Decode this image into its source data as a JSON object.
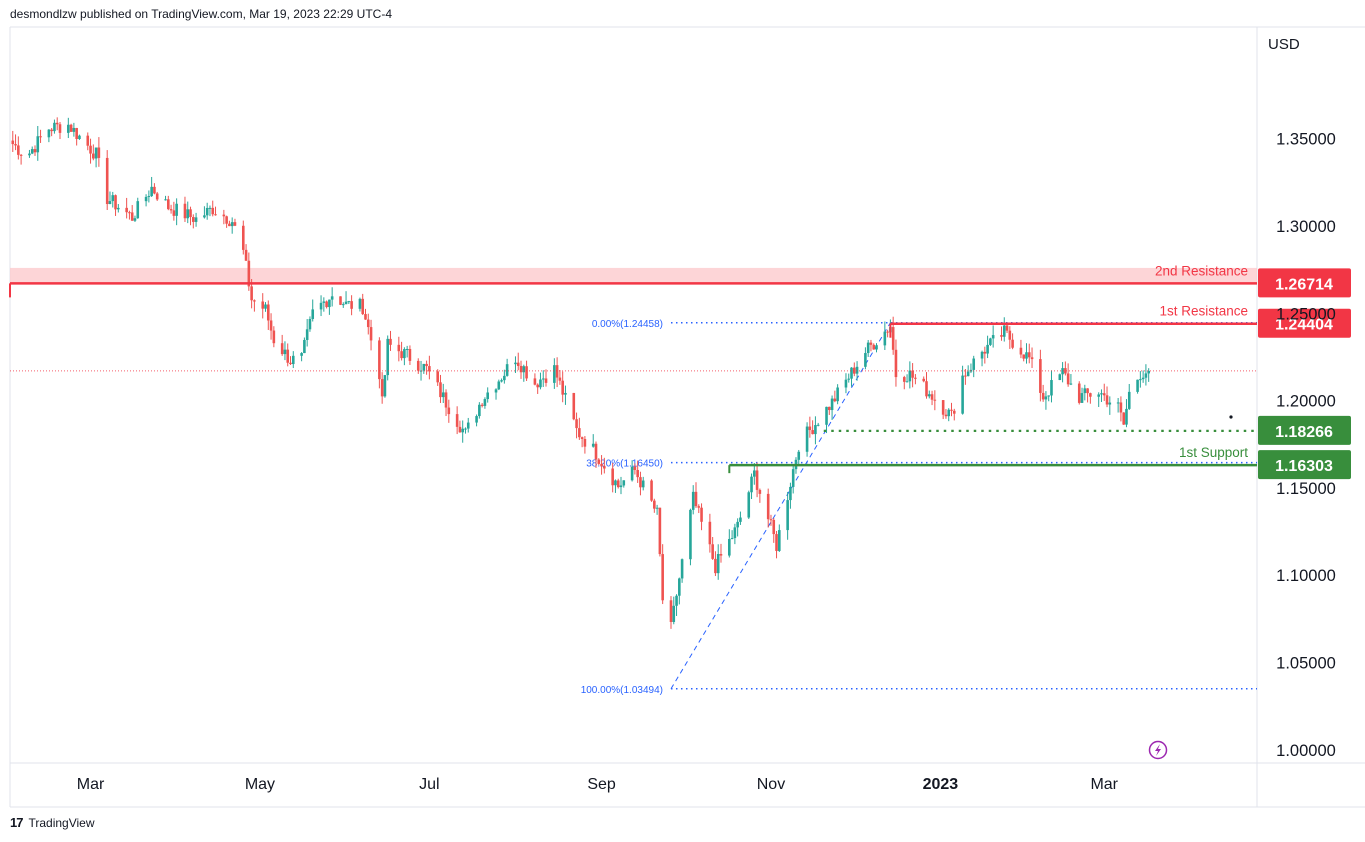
{
  "header": {
    "published": "desmondlzw published on TradingView.com, Mar 19, 2023 22:29 UTC-4"
  },
  "footer": {
    "brand": "TradingView",
    "logo_glyph": "17"
  },
  "currency": "USD",
  "colors": {
    "up": "#26a69a",
    "down": "#ef5350",
    "resistance": "#f23645",
    "support": "#388e3c",
    "fib": "#2962ff",
    "zone": "#fccbcd",
    "grid": "#e0e3eb"
  },
  "chart_data": {
    "type": "candlestick",
    "title": "",
    "xlabel": "",
    "ylabel": "",
    "ylim": [
      0.98,
      1.4
    ],
    "y_ticks": [
      "1.35000",
      "1.30000",
      "1.25000",
      "1.20000",
      "1.15000",
      "1.10000",
      "1.05000",
      "1.00000"
    ],
    "y_tick_values": [
      1.35,
      1.3,
      1.25,
      1.2,
      1.15,
      1.1,
      1.05,
      1.0
    ],
    "x_ticks": [
      {
        "label": "Mar",
        "date": "2022-03-01",
        "bold": false
      },
      {
        "label": "May",
        "date": "2022-05-01",
        "bold": false
      },
      {
        "label": "Jul",
        "date": "2022-07-01",
        "bold": false
      },
      {
        "label": "Sep",
        "date": "2022-09-01",
        "bold": false
      },
      {
        "label": "Nov",
        "date": "2022-11-01",
        "bold": false
      },
      {
        "label": "2023",
        "date": "2023-01-01",
        "bold": true
      },
      {
        "label": "Mar",
        "date": "2023-03-01",
        "bold": false
      }
    ],
    "price_waypoints": [
      [
        "2022-02-01",
        1.347
      ],
      [
        "2022-02-06",
        1.34
      ],
      [
        "2022-02-14",
        1.356
      ],
      [
        "2022-02-21",
        1.358
      ],
      [
        "2022-03-03",
        1.341
      ],
      [
        "2022-03-07",
        1.316
      ],
      [
        "2022-03-16",
        1.305
      ],
      [
        "2022-03-23",
        1.322
      ],
      [
        "2022-03-29",
        1.311
      ],
      [
        "2022-04-08",
        1.304
      ],
      [
        "2022-04-14",
        1.31
      ],
      [
        "2022-04-21",
        1.303
      ],
      [
        "2022-04-25",
        1.285
      ],
      [
        "2022-04-28",
        1.258
      ],
      [
        "2022-05-03",
        1.252
      ],
      [
        "2022-05-06",
        1.235
      ],
      [
        "2022-05-12",
        1.223
      ],
      [
        "2022-05-16",
        1.224
      ],
      [
        "2022-05-20",
        1.25
      ],
      [
        "2022-05-27",
        1.261
      ],
      [
        "2022-06-01",
        1.255
      ],
      [
        "2022-06-07",
        1.254
      ],
      [
        "2022-06-13",
        1.216
      ],
      [
        "2022-06-14",
        1.198
      ],
      [
        "2022-06-16",
        1.232
      ],
      [
        "2022-06-23",
        1.226
      ],
      [
        "2022-06-30",
        1.218
      ],
      [
        "2022-07-07",
        1.199
      ],
      [
        "2022-07-14",
        1.181
      ],
      [
        "2022-07-20",
        1.201
      ],
      [
        "2022-07-28",
        1.216
      ],
      [
        "2022-08-01",
        1.225
      ],
      [
        "2022-08-08",
        1.21
      ],
      [
        "2022-08-15",
        1.218
      ],
      [
        "2022-08-23",
        1.183
      ],
      [
        "2022-08-30",
        1.17
      ],
      [
        "2022-09-07",
        1.151
      ],
      [
        "2022-09-13",
        1.16
      ],
      [
        "2022-09-21",
        1.135
      ],
      [
        "2022-09-23",
        1.086
      ],
      [
        "2022-09-26",
        1.069
      ],
      [
        "2022-09-28",
        1.089
      ],
      [
        "2022-10-04",
        1.144
      ],
      [
        "2022-10-12",
        1.105
      ],
      [
        "2022-10-20",
        1.128
      ],
      [
        "2022-10-26",
        1.158
      ],
      [
        "2022-11-03",
        1.117
      ],
      [
        "2022-11-11",
        1.175
      ],
      [
        "2022-11-23",
        1.199
      ],
      [
        "2022-12-05",
        1.228
      ],
      [
        "2022-12-14",
        1.243
      ],
      [
        "2022-12-16",
        1.215
      ],
      [
        "2022-12-21",
        1.215
      ],
      [
        "2022-12-29",
        1.203
      ],
      [
        "2023-01-05",
        1.191
      ],
      [
        "2023-01-09",
        1.214
      ],
      [
        "2023-01-16",
        1.228
      ],
      [
        "2023-01-24",
        1.239
      ],
      [
        "2023-02-02",
        1.224
      ],
      [
        "2023-02-07",
        1.202
      ],
      [
        "2023-02-14",
        1.216
      ],
      [
        "2023-02-20",
        1.202
      ],
      [
        "2023-02-27",
        1.205
      ],
      [
        "2023-03-06",
        1.196
      ],
      [
        "2023-03-08",
        1.186
      ],
      [
        "2023-03-10",
        1.204
      ],
      [
        "2023-03-14",
        1.216
      ],
      [
        "2023-03-17",
        1.217
      ]
    ],
    "last_price_line": 1.217,
    "fibonacci": {
      "levels": [
        {
          "label": "0.00%(1.24458)",
          "value": 1.24458
        },
        {
          "label": "38.20%(1.16450)",
          "value": 1.1645
        },
        {
          "label": "100.00%(1.03494)",
          "value": 1.03494
        }
      ],
      "start_date": "2022-09-26",
      "end_date": "2022-12-14",
      "end_value": 1.24458
    },
    "levels": [
      {
        "name": "2nd Resistance",
        "label": "1.26714",
        "value": 1.26714,
        "kind": "resistance",
        "zone_top": 1.276,
        "line_from": "2022-01-31"
      },
      {
        "name": "1st Resistance",
        "label": "1.24404",
        "value": 1.24404,
        "kind": "resistance",
        "line_from": "2022-12-14"
      },
      {
        "name": "",
        "label": "1.18266",
        "value": 1.18266,
        "kind": "support-dotted",
        "line_from": "2022-11-20"
      },
      {
        "name": "1st Support",
        "label": "1.16303",
        "value": 1.16303,
        "kind": "support",
        "line_from": "2022-10-17"
      }
    ],
    "grid": false,
    "legend": "none"
  }
}
